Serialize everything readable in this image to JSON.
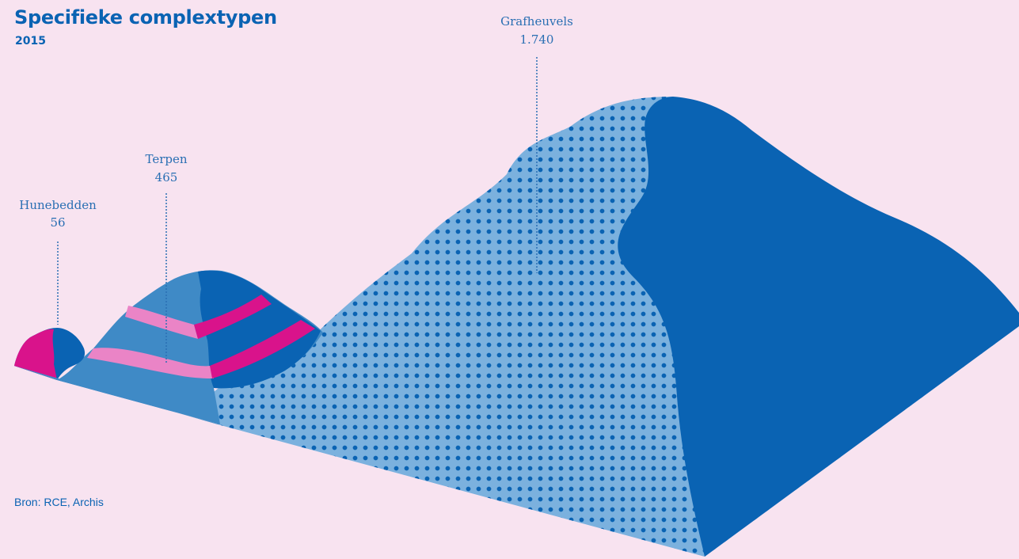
{
  "title": "Specifieke complextypen",
  "subtitle": "2015",
  "source": "Bron: RCE, Archis",
  "colors": {
    "background": "#f8e3f0",
    "dark_blue": "#0a63b3",
    "mid_blue": "#3f8ac6",
    "light_blue": "#7bb1de",
    "magenta": "#d9138b",
    "pink": "#ea84c6"
  },
  "chart_data": {
    "type": "area",
    "categories": [
      "Hunebedden",
      "Terpen",
      "Grafheuvels"
    ],
    "values": [
      56,
      465,
      1740
    ],
    "value_labels": [
      "56",
      "465",
      "1.740"
    ],
    "title": "Specifieke complextypen",
    "subtitle": "2015"
  }
}
